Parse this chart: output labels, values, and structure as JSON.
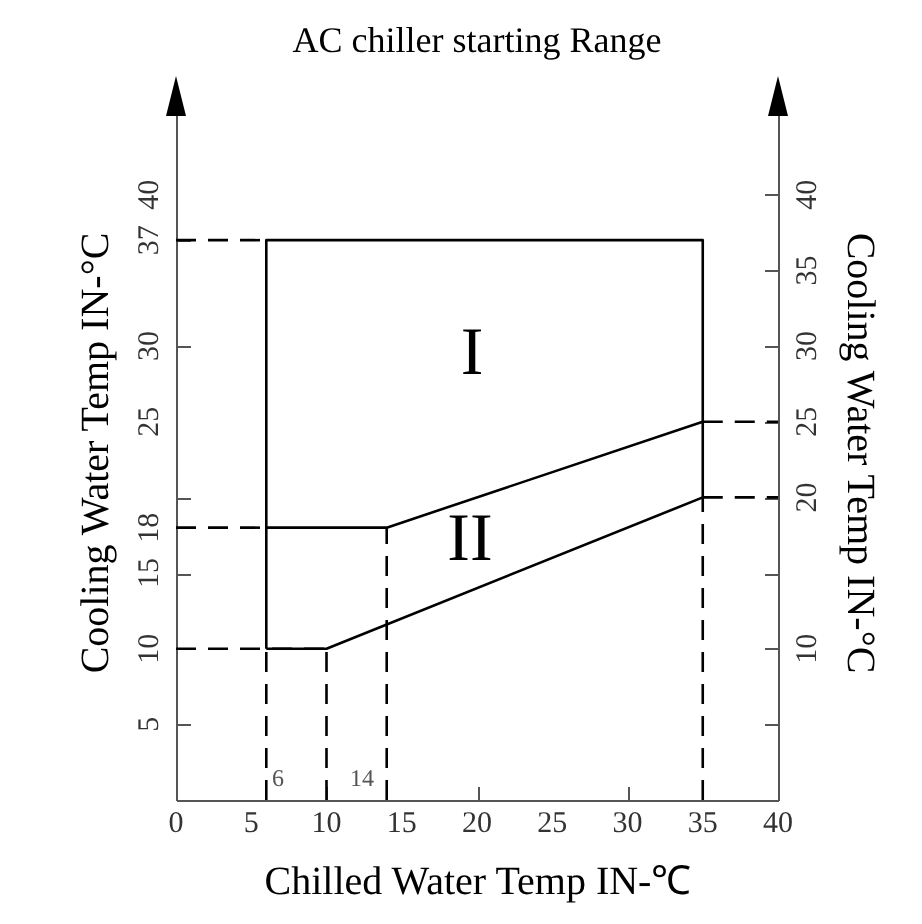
{
  "chart_data": {
    "type": "line",
    "title": "AC chiller starting Range",
    "xlabel": "Chilled Water Temp IN-℃",
    "ylabel": "Cooling Water Temp IN-°C",
    "y2label": "Cooling Water Temp IN-°C",
    "xlim": [
      0,
      40
    ],
    "xticks": [
      0,
      5,
      10,
      15,
      20,
      25,
      30,
      35,
      40
    ],
    "ylim": [
      0,
      46
    ],
    "yticks": [
      5,
      10,
      15,
      {
        "value": 18,
        "label": "18"
      },
      {
        "value": 20,
        "label": null
      },
      25,
      30,
      {
        "value": 35,
        "label": null
      },
      {
        "value": 37,
        "label": "37"
      },
      40
    ],
    "y2lim": [
      0,
      46
    ],
    "y2ticks": [
      {
        "value": 5,
        "label": null
      },
      10,
      {
        "value": 15,
        "label": null
      },
      20,
      25,
      30,
      35,
      40
    ],
    "grid": false,
    "marker": "none",
    "series": [
      {
        "color": "#000000",
        "line_style": "solid",
        "x": [
          6,
          6,
          35,
          35
        ],
        "values": [
          10,
          37,
          37,
          20
        ]
      },
      {
        "color": "#000000",
        "line_style": "solid",
        "x": [
          6,
          10,
          35
        ],
        "values": [
          10,
          10,
          20
        ]
      },
      {
        "color": "#000000",
        "line_style": "solid",
        "x": [
          6,
          14,
          35
        ],
        "values": [
          18,
          18,
          25
        ]
      },
      {
        "color": "#000000",
        "line_style": "dashed",
        "x": [
          0,
          6
        ],
        "values": [
          37,
          37
        ]
      },
      {
        "color": "#000000",
        "line_style": "dashed",
        "x": [
          0,
          6
        ],
        "values": [
          18,
          18
        ]
      },
      {
        "color": "#000000",
        "line_style": "dashed",
        "x": [
          0,
          10
        ],
        "values": [
          10,
          10
        ]
      },
      {
        "color": "#000000",
        "line_style": "dashed",
        "x": [
          35,
          40
        ],
        "values": [
          25,
          25
        ]
      },
      {
        "color": "#000000",
        "line_style": "dashed",
        "x": [
          35,
          40
        ],
        "values": [
          20,
          20
        ]
      },
      {
        "color": "#000000",
        "line_style": "dashed",
        "x": [
          6,
          6
        ],
        "values": [
          0,
          10
        ]
      },
      {
        "color": "#000000",
        "line_style": "dashed",
        "x": [
          10,
          10
        ],
        "values": [
          0,
          10
        ]
      },
      {
        "color": "#000000",
        "line_style": "dashed",
        "x": [
          14,
          14
        ],
        "values": [
          0,
          18
        ]
      },
      {
        "color": "#000000",
        "line_style": "dashed",
        "x": [
          35,
          35
        ],
        "values": [
          0,
          20
        ]
      }
    ],
    "annotations": [
      "I",
      "II",
      "6",
      "14"
    ]
  }
}
